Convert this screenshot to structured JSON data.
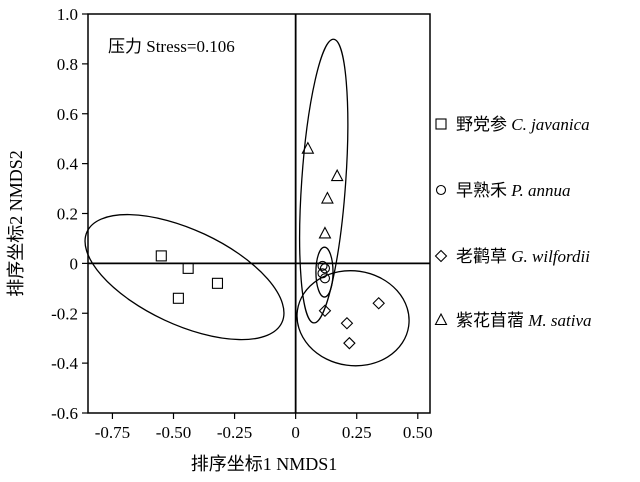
{
  "chart_data": {
    "type": "scatter",
    "title": "",
    "xlabel": "排序坐标1 NMDS1",
    "ylabel": "排序坐标2 NMDS2",
    "xlim": [
      -0.85,
      0.55
    ],
    "ylim": [
      -0.6,
      1.0
    ],
    "x_ticks": [
      -0.75,
      -0.5,
      -0.25,
      0,
      0.25,
      0.5
    ],
    "x_tick_labels": [
      "-0.75",
      "-0.50",
      "-0.25",
      "0",
      "0.25",
      "0.50"
    ],
    "y_ticks": [
      -0.6,
      -0.4,
      -0.2,
      0,
      0.2,
      0.4,
      0.6,
      0.8,
      1.0
    ],
    "y_tick_labels": [
      "-0.6",
      "-0.4",
      "-0.2",
      "0",
      "0.2",
      "0.4",
      "0.6",
      "0.8",
      "1.0"
    ],
    "grid": false,
    "reference_lines": {
      "x": 0,
      "y": 0
    },
    "annotation": "压力 Stress=0.106",
    "legend_position": "right",
    "series": [
      {
        "name": "野党参 C. javanica",
        "name_cn": "野党参",
        "name_latin": "C. javanica",
        "marker": "square",
        "x": [
          -0.55,
          -0.48,
          -0.44,
          -0.32
        ],
        "y": [
          0.03,
          -0.14,
          -0.02,
          -0.08
        ],
        "ellipse": {
          "cx": -0.455,
          "cy": -0.055,
          "rx": 0.44,
          "ry": 0.19,
          "angle": -25
        }
      },
      {
        "name": "早熟禾 P. annua",
        "name_cn": "早熟禾",
        "name_latin": "P. annua",
        "marker": "circle",
        "x": [
          0.11,
          0.12,
          0.11,
          0.12
        ],
        "y": [
          -0.01,
          -0.02,
          -0.04,
          -0.06
        ],
        "ellipse": {
          "cx": 0.118,
          "cy": -0.035,
          "rx": 0.035,
          "ry": 0.1,
          "angle": 0
        }
      },
      {
        "name": "老鹳草 G. wilfordii",
        "name_cn": "老鹳草",
        "name_latin": "G. wilfordii",
        "marker": "diamond",
        "x": [
          0.12,
          0.21,
          0.22,
          0.34
        ],
        "y": [
          -0.19,
          -0.24,
          -0.32,
          -0.16
        ],
        "ellipse": {
          "cx": 0.235,
          "cy": -0.22,
          "rx": 0.23,
          "ry": 0.19,
          "angle": -8
        }
      },
      {
        "name": "紫花苜蓿 M. sativa",
        "name_cn": "紫花苜蓿",
        "name_latin": "M. sativa",
        "marker": "triangle",
        "x": [
          0.05,
          0.17,
          0.13,
          0.12
        ],
        "y": [
          0.46,
          0.35,
          0.26,
          0.12
        ],
        "ellipse": {
          "cx": 0.115,
          "cy": 0.33,
          "rx": 0.09,
          "ry": 0.57,
          "angle": -4
        }
      }
    ]
  }
}
